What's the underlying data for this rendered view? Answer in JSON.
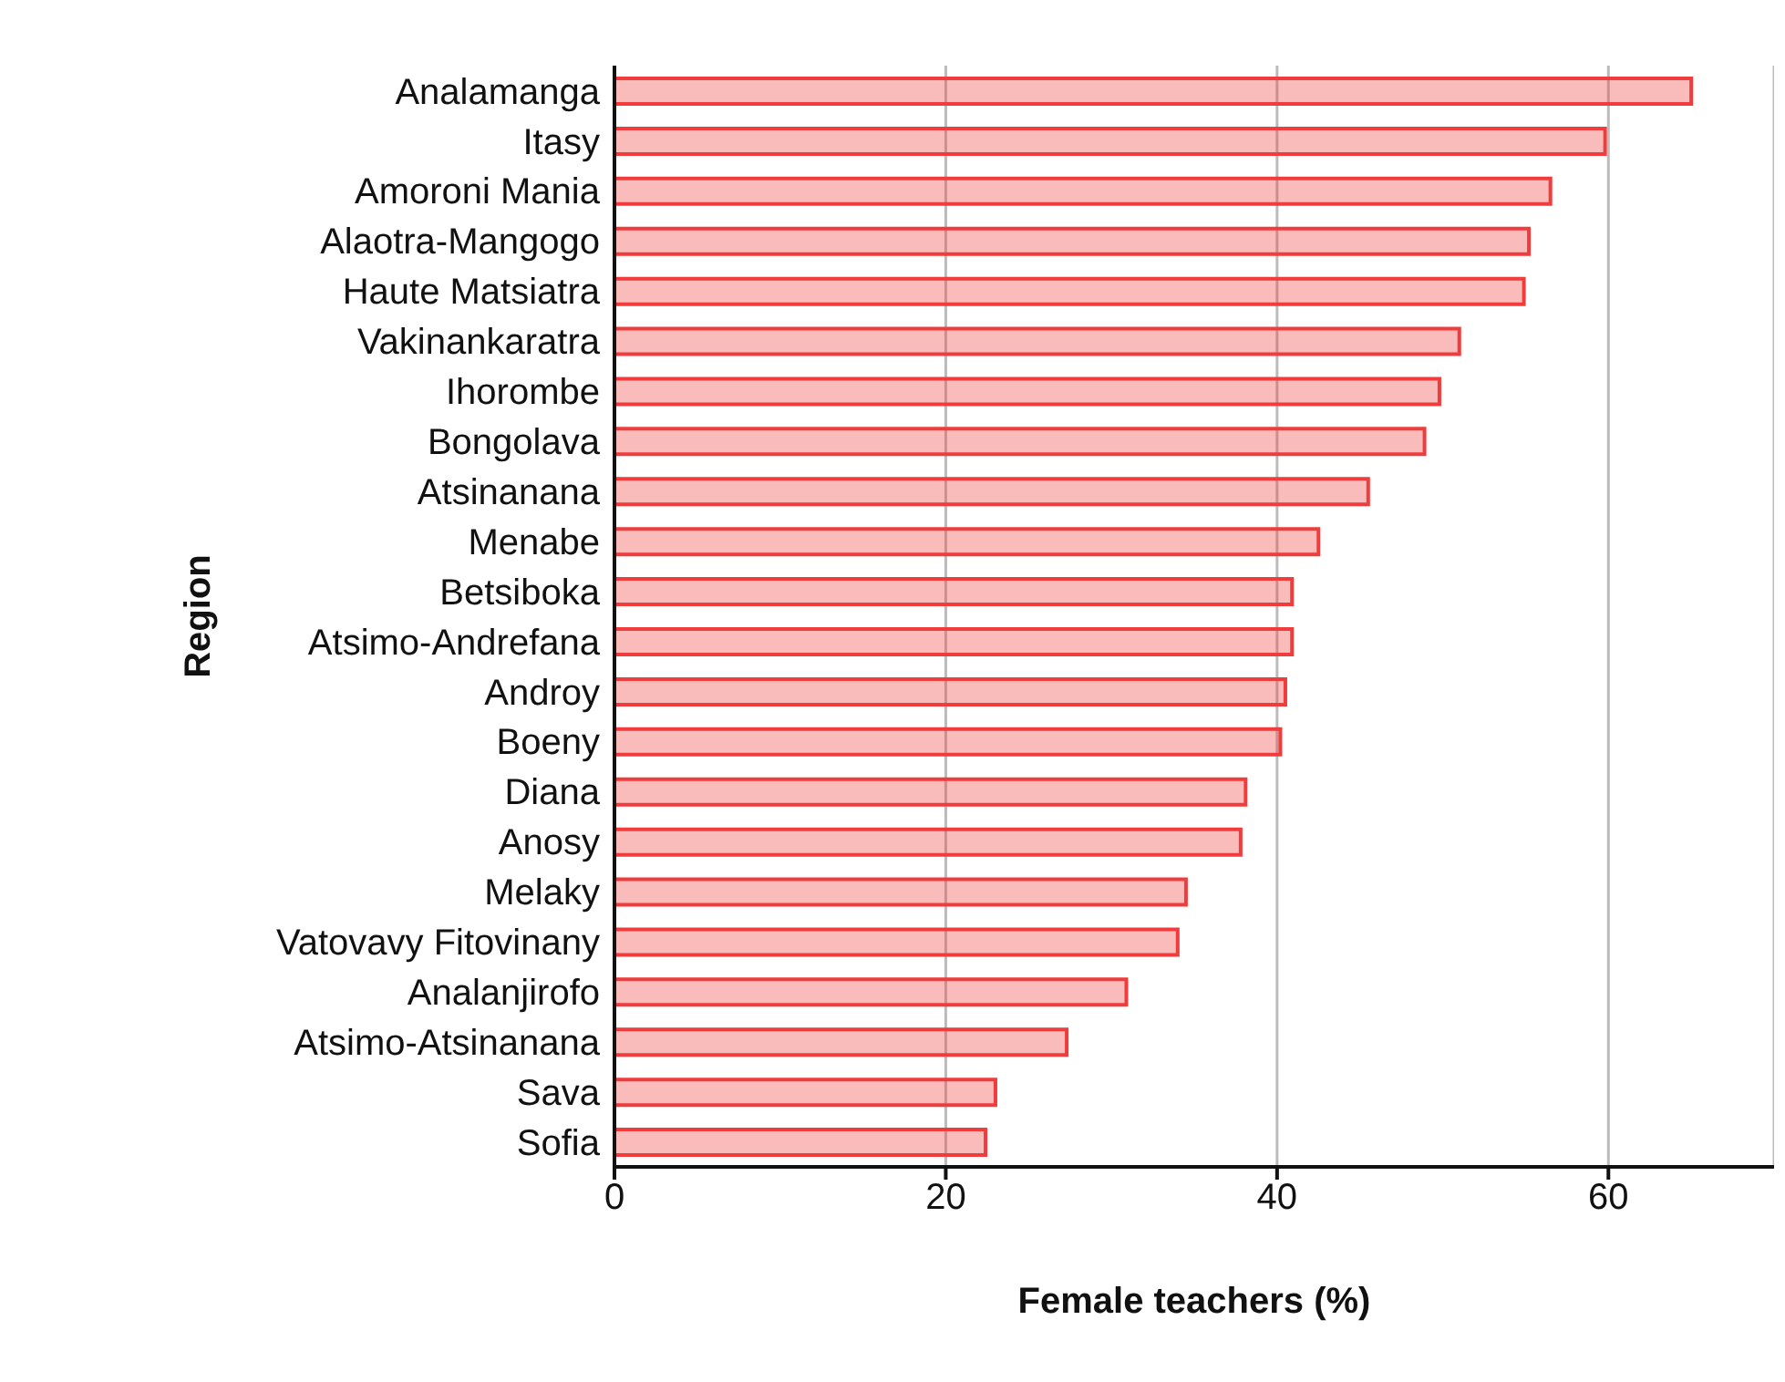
{
  "chart_data": {
    "type": "bar",
    "orientation": "horizontal",
    "xlabel": "Female teachers (%)",
    "ylabel": "Region",
    "categories": [
      "Analamanga",
      "Itasy",
      "Amoroni Mania",
      "Alaotra-Mangogo",
      "Haute Matsiatra",
      "Vakinankaratra",
      "Ihorombe",
      "Bongolava",
      "Atsinanana",
      "Menabe",
      "Betsiboka",
      "Atsimo-Andrefana",
      "Androy",
      "Boeny",
      "Diana",
      "Anosy",
      "Melaky",
      "Vatovavy Fitovinany",
      "Analanjirofo",
      "Atsimo-Atsinanana",
      "Sava",
      "Sofia"
    ],
    "values": [
      65.0,
      59.8,
      56.5,
      55.2,
      54.9,
      51.0,
      49.8,
      48.9,
      45.5,
      42.5,
      40.9,
      40.9,
      40.5,
      40.2,
      38.1,
      37.8,
      34.5,
      34.0,
      30.9,
      27.3,
      23.0,
      22.4
    ],
    "color": "#f03c3c",
    "xlim": [
      0,
      70
    ],
    "xticks": [
      0,
      20,
      40,
      60
    ],
    "grid": "x"
  }
}
